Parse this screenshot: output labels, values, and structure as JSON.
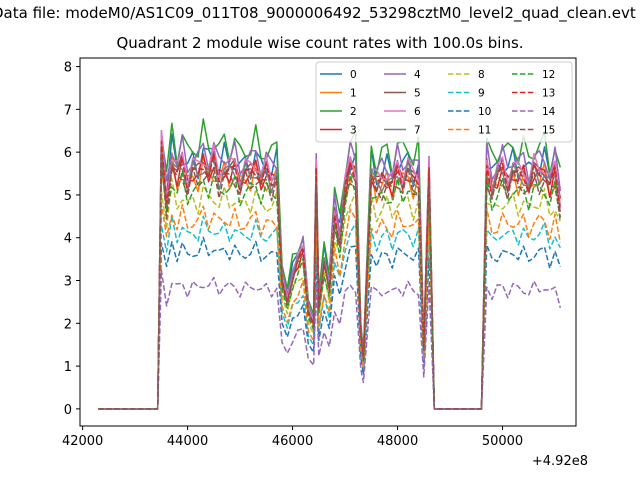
{
  "suptitle": "Data file: modeM0/AS1C09_011T08_9000006492_53298cztM0_level2_quad_clean.evt",
  "title": "Quadrant 2 module wise count rates with 100.0s bins.",
  "offset_label": "+4.92e8",
  "chart_data": {
    "type": "line",
    "title": "Quadrant 2 module wise count rates with 100.0s bins.",
    "xlabel": "",
    "ylabel": "",
    "x_offset_label": "+4.92e8",
    "xlim": [
      41950,
      51400
    ],
    "ylim": [
      -0.4,
      8.2
    ],
    "xticks": [
      42000,
      44000,
      46000,
      48000,
      50000
    ],
    "xtick_labels": [
      "42000",
      "44000",
      "46000",
      "48000",
      "50000"
    ],
    "yticks": [
      0,
      1,
      2,
      3,
      4,
      5,
      6,
      7,
      8
    ],
    "ytick_labels": [
      "0",
      "1",
      "2",
      "3",
      "4",
      "5",
      "6",
      "7",
      "8"
    ],
    "legend_position": "upper right",
    "x": [
      42300,
      43430,
      43500,
      43600,
      43700,
      43800,
      43900,
      44000,
      44100,
      44200,
      44300,
      44400,
      44500,
      44600,
      44700,
      44800,
      44900,
      45000,
      45100,
      45200,
      45300,
      45400,
      45500,
      45600,
      45700,
      45800,
      45900,
      46000,
      46100,
      46200,
      46300,
      46400,
      46450,
      46500,
      46600,
      46700,
      46800,
      46900,
      47000,
      47100,
      47200,
      47300,
      47350,
      47400,
      47500,
      47600,
      47700,
      47800,
      47900,
      48000,
      48100,
      48200,
      48300,
      48400,
      48500,
      48600,
      48700,
      48750,
      49600,
      49700,
      49800,
      49900,
      50000,
      50100,
      50200,
      50300,
      50400,
      50500,
      50600,
      50700,
      50800,
      50900,
      51000,
      51100
    ],
    "series": [
      {
        "name": "0",
        "color": "#1f77b4",
        "dashed": false,
        "base": 6.3,
        "amp": 0.55,
        "phase": 0.0
      },
      {
        "name": "1",
        "color": "#ff7f0e",
        "dashed": false,
        "base": 5.9,
        "amp": 0.5,
        "phase": 0.7
      },
      {
        "name": "2",
        "color": "#2ca02c",
        "dashed": false,
        "base": 6.7,
        "amp": 0.6,
        "phase": 1.3
      },
      {
        "name": "3",
        "color": "#d62728",
        "dashed": false,
        "base": 6.0,
        "amp": 0.45,
        "phase": 2.1
      },
      {
        "name": "4",
        "color": "#9467bd",
        "dashed": false,
        "base": 6.4,
        "amp": 0.55,
        "phase": 2.8
      },
      {
        "name": "5",
        "color": "#8c564b",
        "dashed": false,
        "base": 6.1,
        "amp": 0.45,
        "phase": 3.4
      },
      {
        "name": "6",
        "color": "#e377c2",
        "dashed": false,
        "base": 6.2,
        "amp": 0.5,
        "phase": 4.0
      },
      {
        "name": "7",
        "color": "#7f7f7f",
        "dashed": false,
        "base": 6.0,
        "amp": 0.45,
        "phase": 4.7
      },
      {
        "name": "8",
        "color": "#bcbd22",
        "dashed": true,
        "base": 5.3,
        "amp": 0.4,
        "phase": 0.4
      },
      {
        "name": "9",
        "color": "#17becf",
        "dashed": true,
        "base": 4.5,
        "amp": 0.35,
        "phase": 1.0
      },
      {
        "name": "10",
        "color": "#1f77b4",
        "dashed": true,
        "base": 4.0,
        "amp": 0.3,
        "phase": 1.7
      },
      {
        "name": "11",
        "color": "#ff7f0e",
        "dashed": true,
        "base": 4.8,
        "amp": 0.4,
        "phase": 2.4
      },
      {
        "name": "12",
        "color": "#2ca02c",
        "dashed": true,
        "base": 5.6,
        "amp": 0.45,
        "phase": 3.1
      },
      {
        "name": "13",
        "color": "#d62728",
        "dashed": true,
        "base": 6.0,
        "amp": 0.45,
        "phase": 3.7
      },
      {
        "name": "14",
        "color": "#9467bd",
        "dashed": true,
        "base": 3.1,
        "amp": 0.25,
        "phase": 4.4
      },
      {
        "name": "15",
        "color": "#8c564b",
        "dashed": true,
        "base": 5.8,
        "amp": 0.45,
        "phase": 5.0
      }
    ]
  }
}
